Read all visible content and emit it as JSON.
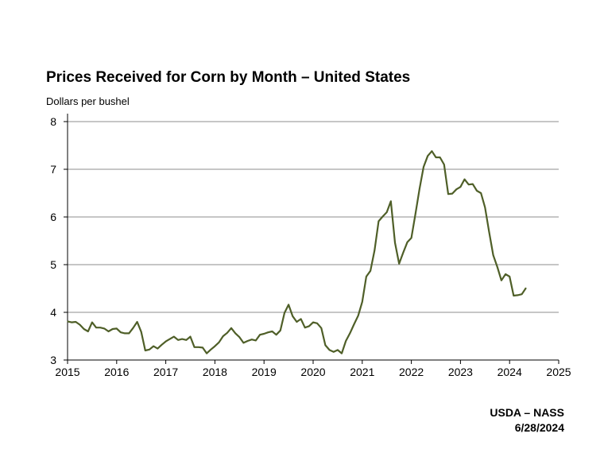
{
  "chart_data": {
    "type": "line",
    "title": "Prices Received for Corn by Month – United States",
    "ylabel": "Dollars per bushel",
    "xlabel": "",
    "xlim": [
      2015,
      2025
    ],
    "ylim": [
      3,
      8
    ],
    "x_ticks": [
      "2015",
      "2016",
      "2017",
      "2018",
      "2019",
      "2020",
      "2021",
      "2022",
      "2023",
      "2024",
      "2025"
    ],
    "y_ticks": [
      "3",
      "4",
      "5",
      "6",
      "7",
      "8"
    ],
    "grid": "horizontal",
    "line_color": "#4f5f28",
    "series": [
      {
        "x": [
          2015.0,
          2015.083,
          2015.167,
          2015.25,
          2015.333,
          2015.417,
          2015.5,
          2015.583,
          2015.667,
          2015.75,
          2015.833,
          2015.917,
          2016.0,
          2016.083,
          2016.167,
          2016.25,
          2016.333,
          2016.417,
          2016.5,
          2016.583,
          2016.667,
          2016.75,
          2016.833,
          2016.917,
          2017.0,
          2017.083,
          2017.167,
          2017.25,
          2017.333,
          2017.417,
          2017.5,
          2017.583,
          2017.667,
          2017.75,
          2017.833,
          2017.917,
          2018.0,
          2018.083,
          2018.167,
          2018.25,
          2018.333,
          2018.417,
          2018.5,
          2018.583,
          2018.667,
          2018.75,
          2018.833,
          2018.917,
          2019.0,
          2019.083,
          2019.167,
          2019.25,
          2019.333,
          2019.417,
          2019.5,
          2019.583,
          2019.667,
          2019.75,
          2019.833,
          2019.917,
          2020.0,
          2020.083,
          2020.167,
          2020.25,
          2020.333,
          2020.417,
          2020.5,
          2020.583,
          2020.667,
          2020.75,
          2020.833,
          2020.917,
          2021.0,
          2021.083,
          2021.167,
          2021.25,
          2021.333,
          2021.417,
          2021.5,
          2021.583,
          2021.667,
          2021.75,
          2021.833,
          2021.917,
          2022.0,
          2022.083,
          2022.167,
          2022.25,
          2022.333,
          2022.417,
          2022.5,
          2022.583,
          2022.667,
          2022.75,
          2022.833,
          2022.917,
          2023.0,
          2023.083,
          2023.167,
          2023.25,
          2023.333,
          2023.417,
          2023.5,
          2023.583,
          2023.667,
          2023.75,
          2023.833,
          2023.917,
          2024.0,
          2024.083,
          2024.167,
          2024.25,
          2024.333
        ],
        "values": [
          3.81,
          3.79,
          3.8,
          3.74,
          3.65,
          3.6,
          3.79,
          3.68,
          3.68,
          3.66,
          3.6,
          3.65,
          3.66,
          3.58,
          3.56,
          3.56,
          3.67,
          3.8,
          3.59,
          3.2,
          3.22,
          3.29,
          3.24,
          3.32,
          3.39,
          3.44,
          3.49,
          3.42,
          3.44,
          3.42,
          3.49,
          3.27,
          3.27,
          3.26,
          3.14,
          3.22,
          3.29,
          3.37,
          3.5,
          3.57,
          3.67,
          3.56,
          3.48,
          3.36,
          3.4,
          3.43,
          3.41,
          3.53,
          3.55,
          3.58,
          3.6,
          3.53,
          3.62,
          3.99,
          4.16,
          3.92,
          3.8,
          3.86,
          3.68,
          3.71,
          3.79,
          3.77,
          3.67,
          3.31,
          3.21,
          3.17,
          3.21,
          3.14,
          3.4,
          3.56,
          3.75,
          3.93,
          4.22,
          4.75,
          4.87,
          5.3,
          5.91,
          6.01,
          6.1,
          6.33,
          5.46,
          5.02,
          5.25,
          5.47,
          5.56,
          6.06,
          6.59,
          7.05,
          7.28,
          7.38,
          7.25,
          7.25,
          7.1,
          6.48,
          6.49,
          6.58,
          6.63,
          6.79,
          6.68,
          6.69,
          6.55,
          6.5,
          6.2,
          5.69,
          5.2,
          4.95,
          4.67,
          4.8,
          4.75,
          4.35,
          4.36,
          4.38,
          4.51
        ]
      }
    ]
  },
  "source": {
    "agency": "USDA – NASS",
    "date": "6/28/2024"
  }
}
